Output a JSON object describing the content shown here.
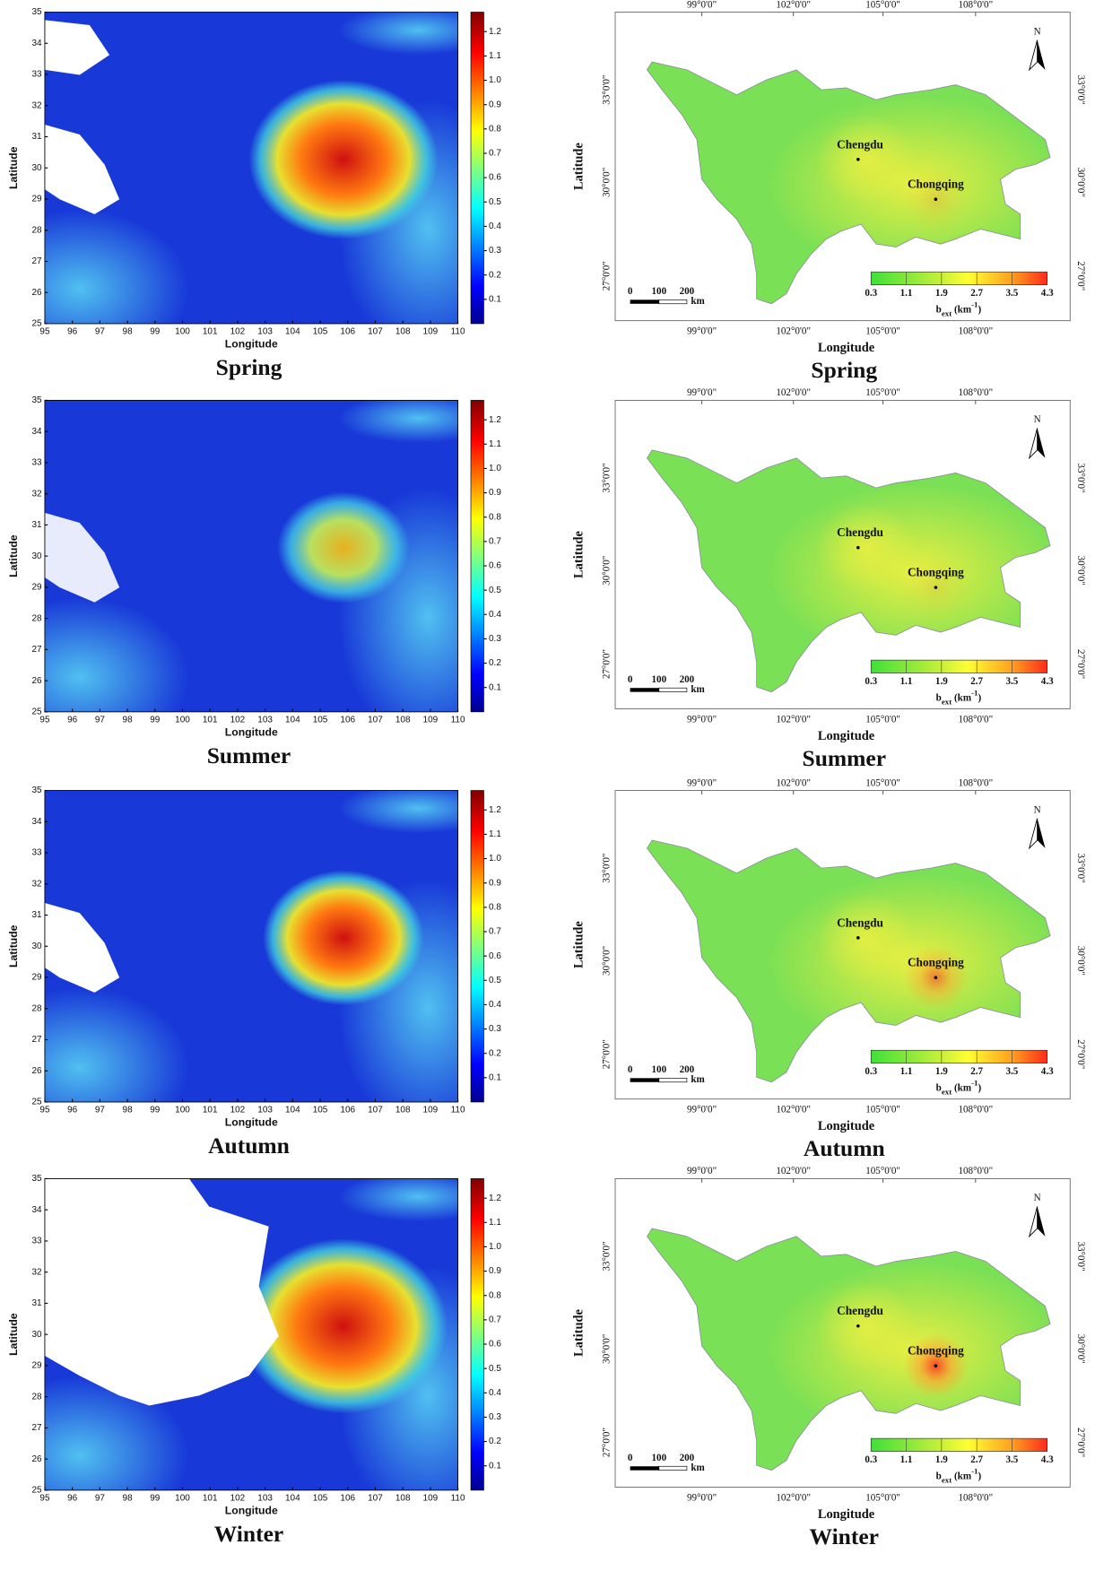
{
  "seasons": [
    "Spring",
    "Summer",
    "Autumn",
    "Winter"
  ],
  "aod_panel": {
    "x_label": "Longitude",
    "y_label": "Latitude",
    "xlim": [
      95,
      110
    ],
    "xticks": [
      95,
      96,
      97,
      98,
      99,
      100,
      101,
      102,
      103,
      104,
      105,
      106,
      107,
      108,
      109,
      110
    ],
    "ylim": [
      25,
      35
    ],
    "yticks": [
      25,
      26,
      27,
      28,
      29,
      30,
      31,
      32,
      33,
      34,
      35
    ],
    "colorbar_lim": [
      0,
      1.28
    ],
    "colorbar_ticks": [
      0.1,
      0.2,
      0.3,
      0.4,
      0.5,
      0.6,
      0.7,
      0.8,
      0.9,
      {
        "value": 1,
        "label": "1.0"
      },
      1.1,
      1.2
    ]
  },
  "bext_map": {
    "x_label": "Longitude",
    "y_label": "Latitude",
    "lon_labels": [
      "99°0'0\"",
      "102°0'0\"",
      "105°0'0\"",
      "108°0'0\""
    ],
    "lat_labels": [
      "27°0'0\"",
      "30°0'0\"",
      "33°0'0\""
    ],
    "cities": [
      "Chengdu",
      "Chongqing"
    ],
    "north_label": "N",
    "scale_labels": [
      "0",
      "100",
      "200"
    ],
    "scale_unit": "km",
    "colorbar_lim": [
      0.3,
      4.3
    ],
    "colorbar_ticks": [
      0.3,
      1.1,
      1.9,
      2.7,
      3.5,
      4.3
    ],
    "colorbar_title": {
      "symbol": "b",
      "subscript": "ext",
      "unit": " (km",
      "superscript": "-1",
      "close": ")"
    }
  }
}
